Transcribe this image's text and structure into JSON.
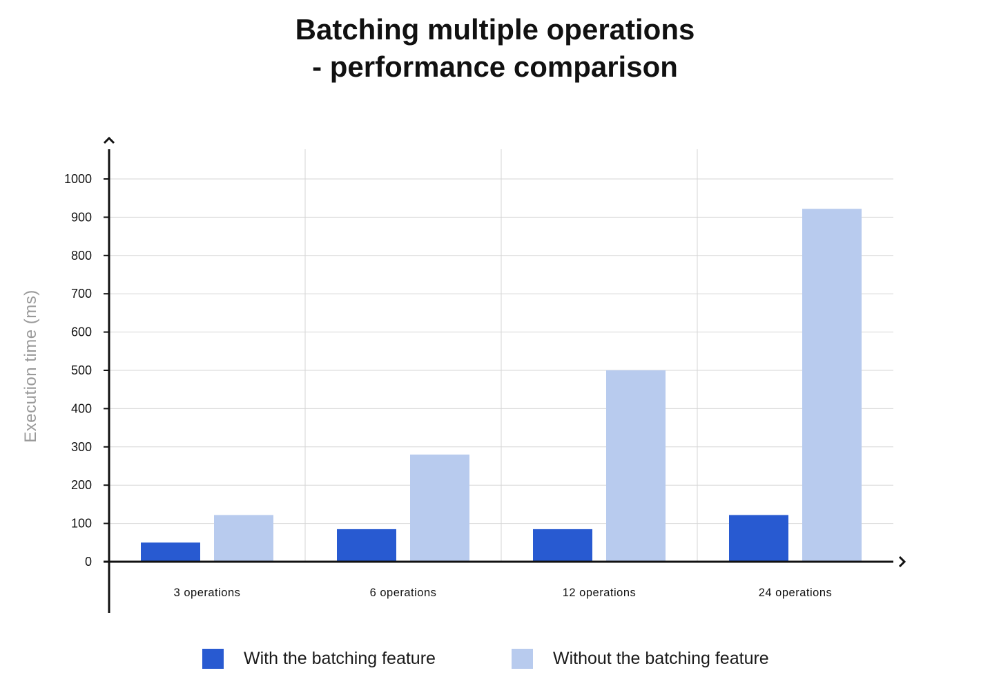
{
  "title_lines": [
    "Batching multiple operations",
    "- performance comparison"
  ],
  "colors": {
    "with": "#285ad1",
    "without": "#b8cbee",
    "axis": "#111111",
    "grid": "#d6d6d6",
    "ylabel": "#999999"
  },
  "chart_data": {
    "type": "bar",
    "title": "Batching multiple operations - performance comparison",
    "ylabel": "Execution time (ms)",
    "xlabel": "",
    "categories": [
      "3 operations",
      "6 operations",
      "12 operations",
      "24 operations"
    ],
    "series": [
      {
        "name": "With the batching feature",
        "values": [
          50,
          85,
          85,
          122
        ]
      },
      {
        "name": "Without the batching feature",
        "values": [
          122,
          280,
          500,
          922
        ]
      }
    ],
    "ylim": [
      0,
      1000
    ],
    "yticks": [
      "0",
      "100",
      "200",
      "300",
      "400",
      "500",
      "600",
      "700",
      "800",
      "900",
      "1000"
    ],
    "grid": true,
    "legend": "bottom"
  }
}
